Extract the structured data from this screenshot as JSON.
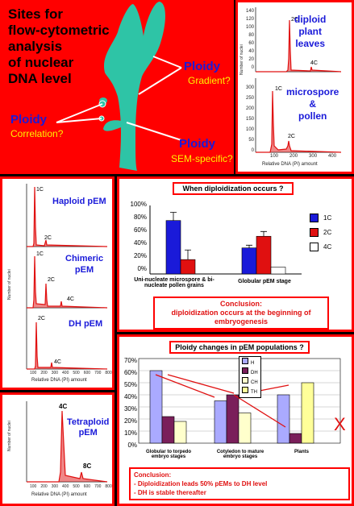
{
  "top_panel": {
    "title": "Sites for\nflow-cytometric\nanalysis\nof nuclear\nDNA level",
    "label_ploidy_1": "Ploidy",
    "label_q_1": "Gradient?",
    "label_ploidy_2": "Ploidy",
    "label_q_2": "Correlation?",
    "label_ploidy_3": "Ploidy",
    "label_q_3": "SEM-specific?",
    "colors": {
      "background": "#ff0000",
      "plant": "#2ec4a6"
    }
  },
  "hist_top_right": {
    "label_a": "diploid\nplant\nleaves",
    "label_b": "microspore\n&\npollen",
    "ylabel": "Number of nuclei",
    "xlabel": "Relative DNA (PI) amount",
    "peaks_a": [
      "2C",
      "4C"
    ],
    "peaks_b": [
      "1C",
      "2C"
    ],
    "yticks_a": [
      "140",
      "120",
      "100",
      "80",
      "60",
      "40",
      "20",
      "0"
    ],
    "yticks_b": [
      "300",
      "250",
      "200",
      "150",
      "100",
      "50",
      "0"
    ],
    "xticks": [
      "100",
      "200",
      "300",
      "400"
    ]
  },
  "hist_left": {
    "label_a": "Haploid pEM",
    "label_b": "Chimeric\npEM",
    "label_c": "DH pEM",
    "ylabel": "Number of nuclei",
    "xlabel": "Relative DNA (PI) amount",
    "xticks": [
      "100",
      "200",
      "300",
      "400",
      "500",
      "600",
      "700",
      "800"
    ],
    "peaks_a": [
      "1C",
      "2C"
    ],
    "peaks_b": [
      "1C",
      "2C",
      "4C"
    ],
    "peaks_c": [
      "2C",
      "4C"
    ]
  },
  "hist_tetraploid": {
    "label": "Tetraploid\npEM",
    "peak_main": "4C",
    "peak_second": "8C",
    "ylabel": "Number of nuclei",
    "xlabel": "Relative DNA (PI) amount",
    "xticks": [
      "100",
      "200",
      "300",
      "400",
      "500",
      "600",
      "700",
      "800"
    ]
  },
  "diploidization": {
    "title": "When diploidization occurs ?",
    "conclusion_title": "Conclusion:",
    "conclusion_body": "diploidization occurs at the beginning of embryogenesis",
    "chart_data": {
      "type": "bar",
      "categories": [
        "Uni-nucleate microspore & bi-nucleate pollen grains",
        "Globular pEM stage"
      ],
      "series": [
        {
          "name": "1C",
          "values": [
            78,
            38
          ],
          "errors": [
            12,
            4
          ],
          "color": "#1a1ad9"
        },
        {
          "name": "2C",
          "values": [
            21,
            55
          ],
          "errors": [
            14,
            7
          ],
          "color": "#e01010"
        },
        {
          "name": "4C",
          "values": [
            0,
            10
          ],
          "errors": [
            0,
            0
          ],
          "color": "#ffffff"
        }
      ],
      "yticks": [
        "100%",
        "80%",
        "60%",
        "40%",
        "20%",
        "0%"
      ],
      "ylim": [
        0,
        100
      ],
      "legend": "right"
    }
  },
  "ploidy_changes": {
    "title": "Ploidy changes in pEM populations ?",
    "conclusion_title": "Conclusion:",
    "conclusion_line1": "- Diploidization leads 50% pEMs to DH level",
    "conclusion_line2": "- DH is stable thereafter",
    "cross_mark": "X",
    "chart_data": {
      "type": "bar",
      "categories": [
        "Globular to torpedo embryo stages",
        "Cotyledon to mature embryo stages",
        "Plants"
      ],
      "series": [
        {
          "name": "H",
          "values": [
            60,
            35,
            40
          ],
          "color": "#aaaaff"
        },
        {
          "name": "DH",
          "values": [
            22,
            40,
            8
          ],
          "color": "#7a1f5a"
        },
        {
          "name": "CH",
          "values": [
            18,
            25,
            0
          ],
          "color": "#ffffcc"
        },
        {
          "name": "TH",
          "values": [
            0,
            0,
            50
          ],
          "color": "#ffff99"
        }
      ],
      "yticks": [
        "70%",
        "60%",
        "50%",
        "40%",
        "30%",
        "20%",
        "10%",
        "0%"
      ],
      "ylim": [
        0,
        70
      ],
      "legend": "top-center"
    }
  }
}
